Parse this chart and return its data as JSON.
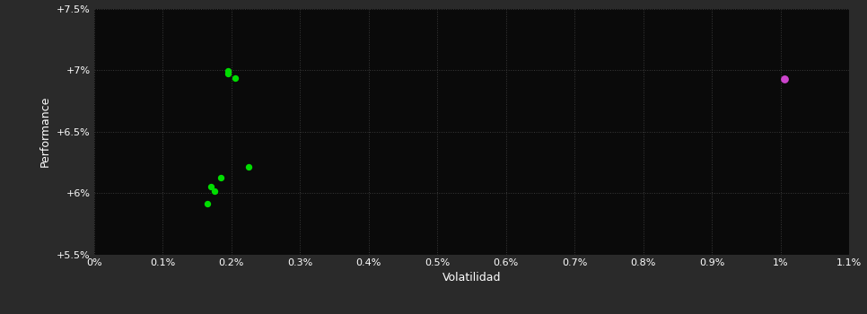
{
  "background_color": "#2a2a2a",
  "plot_background_color": "#0a0a0a",
  "grid_color": "#3a3a3a",
  "text_color": "#ffffff",
  "xlabel": "Volatilidad",
  "ylabel": "Performance",
  "xlim": [
    0,
    0.011
  ],
  "ylim": [
    0.055,
    0.075
  ],
  "xticks": [
    0,
    0.001,
    0.002,
    0.003,
    0.004,
    0.005,
    0.006,
    0.007,
    0.008,
    0.009,
    0.01,
    0.011
  ],
  "xtick_labels": [
    "0%",
    "0.1%",
    "0.2%",
    "0.3%",
    "0.4%",
    "0.5%",
    "0.6%",
    "0.7%",
    "0.8%",
    "0.9%",
    "1%",
    "1.1%"
  ],
  "yticks": [
    0.055,
    0.06,
    0.065,
    0.07,
    0.075
  ],
  "ytick_labels": [
    "+5.5%",
    "+6%",
    "+6.5%",
    "+7%",
    "+7.5%"
  ],
  "green_points": [
    [
      0.00195,
      0.06995
    ],
    [
      0.00195,
      0.06975
    ],
    [
      0.00205,
      0.06935
    ],
    [
      0.00225,
      0.06215
    ],
    [
      0.00185,
      0.06125
    ],
    [
      0.0017,
      0.06055
    ],
    [
      0.00175,
      0.06015
    ],
    [
      0.00165,
      0.05915
    ]
  ],
  "magenta_points": [
    [
      0.01005,
      0.0693
    ]
  ],
  "green_color": "#00dd00",
  "magenta_color": "#cc44cc",
  "marker_size": 28,
  "magenta_marker_size": 40
}
